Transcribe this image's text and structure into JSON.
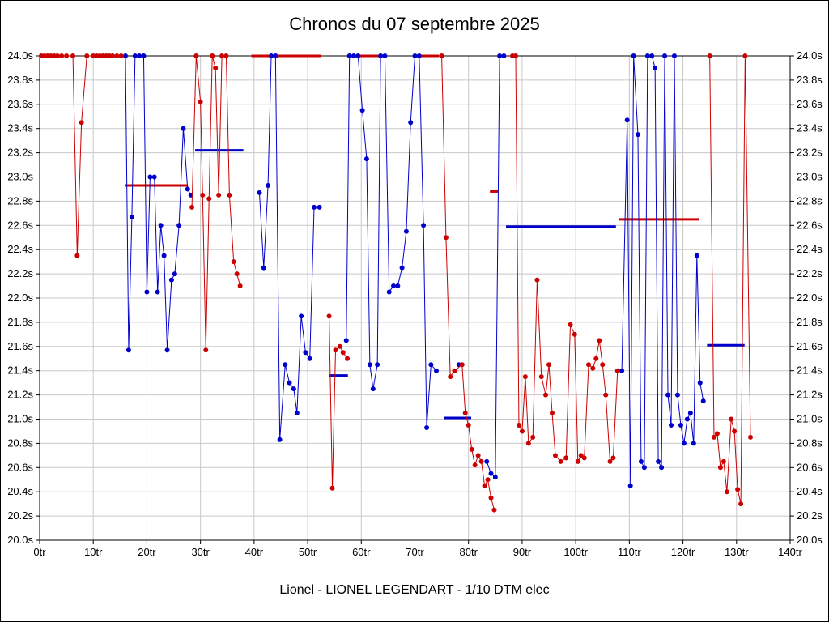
{
  "chart_data": {
    "type": "line",
    "title": "Chronos du 07 septembre 2025",
    "caption": "Lionel - LIONEL LEGENDART - 1/10 DTM elec",
    "xlim": [
      0,
      140
    ],
    "ylim": [
      20.0,
      24.0
    ],
    "grid": true,
    "grid_color": "#c8c8c8",
    "x_tick_labels": [
      "0tr",
      "10tr",
      "20tr",
      "30tr",
      "40tr",
      "50tr",
      "60tr",
      "70tr",
      "80tr",
      "90tr",
      "100tr",
      "110tr",
      "120tr",
      "130tr",
      "140tr"
    ],
    "y_tick_labels": [
      "24.0s",
      "23.8s",
      "23.6s",
      "23.4s",
      "23.2s",
      "23.0s",
      "22.8s",
      "22.6s",
      "22.4s",
      "22.2s",
      "22.0s",
      "21.8s",
      "21.6s",
      "21.4s",
      "21.2s",
      "21.0s",
      "20.8s",
      "20.6s",
      "20.4s",
      "20.2s",
      "20.0s"
    ],
    "series": [
      {
        "name": "driver-blue",
        "color": "#0000cc",
        "runs": [
          [
            [
              16,
              24
            ],
            [
              16.6,
              21.57
            ],
            [
              17.2,
              22.67
            ],
            [
              17.8,
              24
            ],
            [
              18.6,
              24
            ],
            [
              19.4,
              24
            ],
            [
              20,
              22.05
            ],
            [
              20.6,
              23.0
            ],
            [
              21.4,
              23.0
            ],
            [
              22,
              22.05
            ],
            [
              22.6,
              22.6
            ],
            [
              23.2,
              22.35
            ],
            [
              23.8,
              21.57
            ],
            [
              24.6,
              22.15
            ],
            [
              25.2,
              22.2
            ],
            [
              26,
              22.6
            ],
            [
              26.8,
              23.4
            ],
            [
              27.6,
              22.9
            ],
            [
              28.2,
              22.85
            ]
          ],
          [
            [
              41,
              22.87
            ],
            [
              41.8,
              22.25
            ],
            [
              42.6,
              22.93
            ],
            [
              43.2,
              24
            ],
            [
              44,
              24
            ],
            [
              44.8,
              20.83
            ],
            [
              45.8,
              21.45
            ],
            [
              46.6,
              21.3
            ],
            [
              47.4,
              21.25
            ],
            [
              48,
              21.05
            ],
            [
              48.8,
              21.85
            ],
            [
              49.6,
              21.55
            ],
            [
              50.4,
              21.5
            ],
            [
              51.2,
              22.75
            ],
            [
              52.2,
              22.75
            ]
          ],
          [
            [
              57.2,
              21.65
            ],
            [
              57.8,
              24
            ],
            [
              58.6,
              24
            ],
            [
              59.4,
              24
            ],
            [
              60.2,
              23.55
            ],
            [
              61,
              23.15
            ],
            [
              61.6,
              21.45
            ],
            [
              62.2,
              21.25
            ],
            [
              63,
              21.45
            ],
            [
              63.6,
              24
            ],
            [
              64.4,
              24
            ],
            [
              65.2,
              22.05
            ],
            [
              66,
              22.1
            ],
            [
              66.8,
              22.1
            ],
            [
              67.6,
              22.25
            ],
            [
              68.4,
              22.55
            ],
            [
              69.2,
              23.45
            ],
            [
              70,
              24
            ],
            [
              70.8,
              24
            ],
            [
              71.6,
              22.6
            ],
            [
              72.2,
              20.93
            ],
            [
              73,
              21.45
            ],
            [
              74,
              21.4
            ]
          ],
          [
            [
              78.2,
              21.45
            ]
          ],
          [
            [
              83.4,
              20.65
            ],
            [
              84.2,
              20.55
            ],
            [
              85,
              20.52
            ],
            [
              85.8,
              24
            ],
            [
              86.6,
              24
            ]
          ],
          [
            [
              108.6,
              21.4
            ],
            [
              109.6,
              23.47
            ],
            [
              110.2,
              20.45
            ],
            [
              110.8,
              24
            ],
            [
              111.6,
              23.35
            ],
            [
              112.2,
              20.65
            ],
            [
              112.8,
              20.6
            ],
            [
              113.4,
              24
            ],
            [
              114.2,
              24
            ],
            [
              114.8,
              23.9
            ],
            [
              115.4,
              20.65
            ],
            [
              116,
              20.6
            ],
            [
              116.6,
              24
            ],
            [
              117.2,
              21.2
            ],
            [
              117.8,
              20.95
            ],
            [
              118.4,
              24
            ],
            [
              119,
              21.2
            ],
            [
              119.6,
              20.95
            ],
            [
              120.2,
              20.8
            ],
            [
              120.8,
              21.0
            ],
            [
              121.4,
              21.05
            ],
            [
              122,
              20.8
            ],
            [
              122.6,
              22.35
            ],
            [
              123.2,
              21.3
            ],
            [
              123.8,
              21.15
            ]
          ]
        ]
      },
      {
        "name": "driver-red",
        "color": "#cc0000",
        "runs": [
          [
            [
              0.3,
              24
            ],
            [
              0.9,
              24
            ],
            [
              1.5,
              24
            ],
            [
              2.1,
              24
            ],
            [
              2.7,
              24
            ],
            [
              3.3,
              24
            ],
            [
              4.1,
              24
            ],
            [
              5,
              24
            ],
            [
              6.2,
              24
            ],
            [
              7,
              22.35
            ],
            [
              7.8,
              23.45
            ],
            [
              8.8,
              24
            ],
            [
              10,
              24
            ],
            [
              10.6,
              24
            ],
            [
              11.2,
              24
            ],
            [
              11.8,
              24
            ],
            [
              12.4,
              24
            ],
            [
              13,
              24
            ],
            [
              13.6,
              24
            ],
            [
              14.4,
              24
            ],
            [
              15.2,
              24
            ]
          ],
          [
            [
              28.4,
              22.75
            ],
            [
              29.2,
              24
            ],
            [
              30,
              23.62
            ],
            [
              30.4,
              22.85
            ],
            [
              31,
              21.57
            ],
            [
              31.6,
              22.82
            ],
            [
              32.2,
              24
            ],
            [
              32.8,
              23.9
            ],
            [
              33.4,
              22.85
            ],
            [
              34,
              24
            ],
            [
              34.8,
              24
            ],
            [
              35.4,
              22.85
            ],
            [
              36.2,
              22.3
            ],
            [
              36.8,
              22.2
            ],
            [
              37.4,
              22.1
            ]
          ],
          [
            [
              54,
              21.85
            ],
            [
              54.6,
              20.43
            ],
            [
              55.2,
              21.57
            ],
            [
              56,
              21.6
            ],
            [
              56.6,
              21.55
            ],
            [
              57.4,
              21.5
            ]
          ],
          [
            [
              75,
              24
            ],
            [
              75.8,
              22.5
            ],
            [
              76.6,
              21.35
            ],
            [
              77.4,
              21.4
            ],
            [
              78.8,
              21.45
            ],
            [
              79.4,
              21.05
            ],
            [
              80,
              20.95
            ],
            [
              80.6,
              20.75
            ],
            [
              81.2,
              20.62
            ],
            [
              81.8,
              20.7
            ],
            [
              82.4,
              20.65
            ],
            [
              83,
              20.45
            ],
            [
              83.6,
              20.5
            ],
            [
              84.2,
              20.35
            ],
            [
              84.8,
              20.25
            ]
          ],
          [
            [
              88.2,
              24
            ],
            [
              88.8,
              24
            ],
            [
              89.4,
              20.95
            ],
            [
              90,
              20.9
            ],
            [
              90.6,
              21.35
            ],
            [
              91.2,
              20.8
            ],
            [
              92,
              20.85
            ],
            [
              92.8,
              22.15
            ],
            [
              93.6,
              21.35
            ],
            [
              94.4,
              21.2
            ],
            [
              95,
              21.45
            ],
            [
              95.6,
              21.05
            ],
            [
              96.2,
              20.7
            ],
            [
              97.2,
              20.65
            ],
            [
              98.2,
              20.68
            ],
            [
              99,
              21.78
            ],
            [
              99.8,
              21.7
            ],
            [
              100.4,
              20.65
            ],
            [
              101,
              20.7
            ],
            [
              101.6,
              20.68
            ],
            [
              102.4,
              21.45
            ],
            [
              103.2,
              21.42
            ],
            [
              103.8,
              21.5
            ],
            [
              104.4,
              21.65
            ],
            [
              105,
              21.45
            ],
            [
              105.6,
              21.2
            ],
            [
              106.4,
              20.65
            ],
            [
              107,
              20.68
            ],
            [
              107.8,
              21.4
            ]
          ],
          [
            [
              125,
              24
            ],
            [
              125.8,
              20.85
            ],
            [
              126.4,
              20.88
            ],
            [
              127,
              20.6
            ],
            [
              127.6,
              20.65
            ],
            [
              128.2,
              20.4
            ],
            [
              129,
              21.0
            ],
            [
              129.6,
              20.9
            ],
            [
              130.2,
              20.42
            ],
            [
              130.8,
              20.3
            ],
            [
              131.6,
              24
            ],
            [
              132.6,
              20.85
            ]
          ]
        ]
      }
    ],
    "average_segments": [
      {
        "series": "driver-red",
        "color": "#cc0000",
        "x1": 16,
        "x2": 27.5,
        "y": 22.93
      },
      {
        "series": "driver-blue",
        "color": "#0000cc",
        "x1": 29,
        "x2": 38,
        "y": 23.22
      },
      {
        "series": "driver-red",
        "color": "#cc0000",
        "x1": 39.5,
        "x2": 52.5,
        "y": 24.0
      },
      {
        "series": "driver-blue",
        "color": "#0000cc",
        "x1": 54,
        "x2": 57.5,
        "y": 21.36
      },
      {
        "series": "driver-red",
        "color": "#cc0000",
        "x1": 59,
        "x2": 63.5,
        "y": 24.0
      },
      {
        "series": "driver-red",
        "color": "#cc0000",
        "x1": 70,
        "x2": 74.5,
        "y": 24.0
      },
      {
        "series": "driver-blue",
        "color": "#0000cc",
        "x1": 75.5,
        "x2": 80.5,
        "y": 21.01
      },
      {
        "series": "driver-red",
        "color": "#cc0000",
        "x1": 84,
        "x2": 85.5,
        "y": 22.88
      },
      {
        "series": "driver-blue",
        "color": "#0000cc",
        "x1": 87,
        "x2": 107.5,
        "y": 22.59
      },
      {
        "series": "driver-red",
        "color": "#cc0000",
        "x1": 108,
        "x2": 123,
        "y": 22.65
      },
      {
        "series": "driver-blue",
        "color": "#0000cc",
        "x1": 124.5,
        "x2": 131.5,
        "y": 21.61
      }
    ]
  }
}
